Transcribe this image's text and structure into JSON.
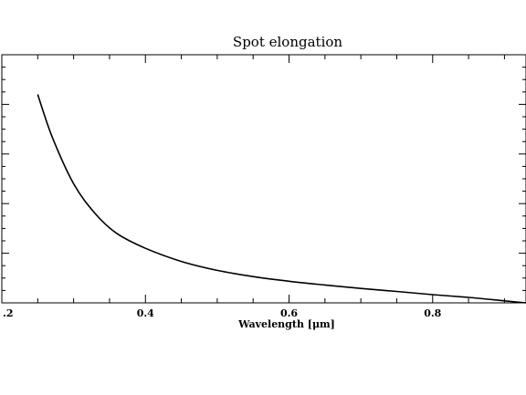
{
  "chart_data": {
    "type": "line",
    "title": "Spot elongation",
    "xlabel": "Wavelength [μm]",
    "ylabel": "",
    "xlim": [
      0.2,
      0.93
    ],
    "ylim": [
      0,
      1.0
    ],
    "x_ticks": [
      0.2,
      0.4,
      0.6,
      0.8
    ],
    "x_tick_labels": [
      ".2",
      "0.4",
      "0.6",
      "0.8"
    ],
    "grid": false,
    "series": [
      {
        "color": "#000000",
        "x": [
          0.25,
          0.27,
          0.3,
          0.33,
          0.36,
          0.4,
          0.45,
          0.5,
          0.55,
          0.6,
          0.65,
          0.7,
          0.75,
          0.8,
          0.85,
          0.9,
          0.93
        ],
        "y": [
          0.84,
          0.67,
          0.48,
          0.36,
          0.28,
          0.22,
          0.167,
          0.131,
          0.106,
          0.087,
          0.072,
          0.058,
          0.046,
          0.033,
          0.022,
          0.008,
          0.0
        ]
      }
    ]
  }
}
